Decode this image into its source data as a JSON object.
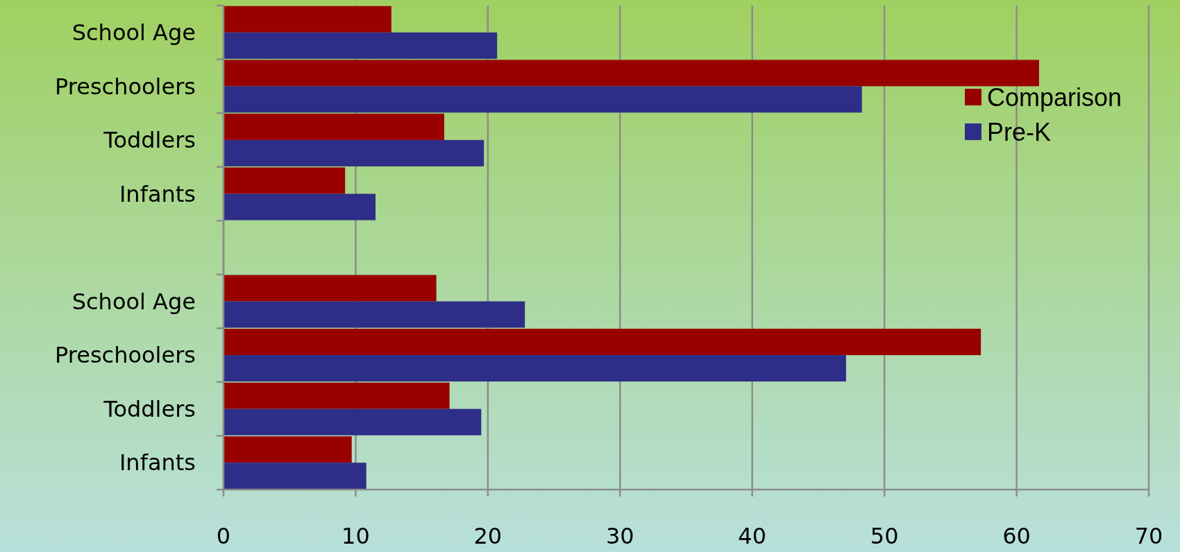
{
  "chart_data": {
    "type": "bar",
    "orientation": "horizontal",
    "categories": [
      "School Age",
      "Preschoolers",
      "Toddlers",
      "Infants",
      null,
      "School Age",
      "Preschoolers",
      "Toddlers",
      "Infants"
    ],
    "series": [
      {
        "name": "Comparison",
        "color": "#990000",
        "values": [
          12.7,
          61.7,
          16.7,
          9.2,
          null,
          16.1,
          57.3,
          17.1,
          9.7
        ]
      },
      {
        "name": "Pre-K",
        "color": "#2e2e88",
        "values": [
          20.7,
          48.3,
          19.7,
          11.5,
          null,
          22.8,
          47.1,
          19.5,
          10.8
        ]
      }
    ],
    "xlim": [
      0,
      70
    ],
    "xticks": [
      0,
      10,
      20,
      30,
      40,
      50,
      60,
      70
    ],
    "grid": "x",
    "legend": "right"
  }
}
